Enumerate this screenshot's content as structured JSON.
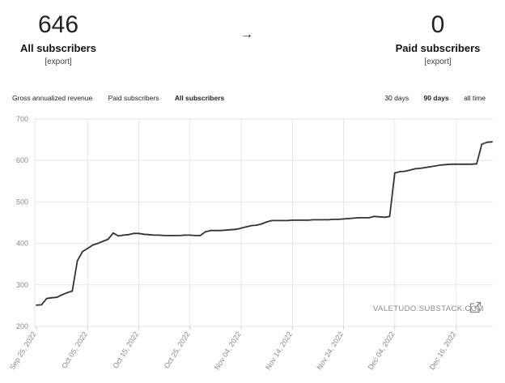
{
  "stats": {
    "left": {
      "value": "646",
      "label": "All subscribers",
      "export": "[export]"
    },
    "arrow": "→",
    "right": {
      "value": "0",
      "label": "Paid subscribers",
      "export": "[export]"
    }
  },
  "tabs": {
    "metrics": [
      "Gross annualized revenue",
      "Paid subscribers",
      "All subscribers"
    ],
    "active_metric": 2,
    "ranges": [
      "30 days",
      "90 days",
      "all time"
    ],
    "active_range": 1
  },
  "watermark": "VALETUDO.SUBSTACK.COM",
  "colors": {
    "line": "#333333",
    "grid": "#e6e6e6",
    "tick": "#8a8a8a"
  },
  "chart_data": {
    "type": "line",
    "title": "",
    "xlabel": "",
    "ylabel": "",
    "ylim": [
      200,
      700
    ],
    "yticks": [
      200,
      300,
      400,
      500,
      600,
      700
    ],
    "grid": true,
    "x_tick_labels": [
      "Sep 25, 2022",
      "Oct 05, 2022",
      "Oct 15, 2022",
      "Oct 25, 2022",
      "Nov 04, 2022",
      "Nov 14, 2022",
      "Nov 24, 2022",
      "Dec 04, 2022",
      "Dec 16, 2022"
    ],
    "x": [
      "2022-09-25",
      "2022-09-26",
      "2022-09-27",
      "2022-09-28",
      "2022-09-29",
      "2022-09-30",
      "2022-10-01",
      "2022-10-02",
      "2022-10-03",
      "2022-10-04",
      "2022-10-05",
      "2022-10-06",
      "2022-10-07",
      "2022-10-08",
      "2022-10-09",
      "2022-10-10",
      "2022-10-11",
      "2022-10-12",
      "2022-10-13",
      "2022-10-14",
      "2022-10-15",
      "2022-10-16",
      "2022-10-17",
      "2022-10-18",
      "2022-10-19",
      "2022-10-20",
      "2022-10-21",
      "2022-10-22",
      "2022-10-23",
      "2022-10-24",
      "2022-10-25",
      "2022-10-26",
      "2022-10-27",
      "2022-10-28",
      "2022-10-29",
      "2022-10-30",
      "2022-10-31",
      "2022-11-01",
      "2022-11-02",
      "2022-11-03",
      "2022-11-04",
      "2022-11-05",
      "2022-11-06",
      "2022-11-07",
      "2022-11-08",
      "2022-11-09",
      "2022-11-10",
      "2022-11-11",
      "2022-11-12",
      "2022-11-13",
      "2022-11-14",
      "2022-11-15",
      "2022-11-16",
      "2022-11-17",
      "2022-11-18",
      "2022-11-19",
      "2022-11-20",
      "2022-11-21",
      "2022-11-22",
      "2022-11-23",
      "2022-11-24",
      "2022-11-25",
      "2022-11-26",
      "2022-11-27",
      "2022-11-28",
      "2022-11-29",
      "2022-11-30",
      "2022-12-01",
      "2022-12-02",
      "2022-12-03",
      "2022-12-04",
      "2022-12-05",
      "2022-12-06",
      "2022-12-07",
      "2022-12-08",
      "2022-12-09",
      "2022-12-10",
      "2022-12-11",
      "2022-12-12",
      "2022-12-13",
      "2022-12-14",
      "2022-12-15",
      "2022-12-16",
      "2022-12-17",
      "2022-12-18",
      "2022-12-19",
      "2022-12-20",
      "2022-12-21",
      "2022-12-22",
      "2022-12-23"
    ],
    "series": [
      {
        "values": [
          251,
          252,
          267,
          269,
          270,
          276,
          281,
          285,
          358,
          380,
          388,
          396,
          400,
          405,
          410,
          425,
          418,
          420,
          421,
          424,
          424,
          422,
          421,
          420,
          420,
          419,
          419,
          419,
          419,
          420,
          420,
          419,
          419,
          428,
          431,
          431,
          431,
          432,
          433,
          434,
          437,
          440,
          443,
          444,
          447,
          452,
          455,
          455,
          455,
          455,
          456,
          456,
          456,
          456,
          457,
          457,
          457,
          457,
          458,
          458,
          459,
          460,
          461,
          462,
          462,
          462,
          465,
          464,
          463,
          465,
          570,
          573,
          574,
          577,
          580,
          581,
          583,
          585,
          587,
          589,
          590,
          591,
          591,
          591,
          591,
          591,
          592,
          639,
          644,
          645
        ]
      }
    ]
  }
}
